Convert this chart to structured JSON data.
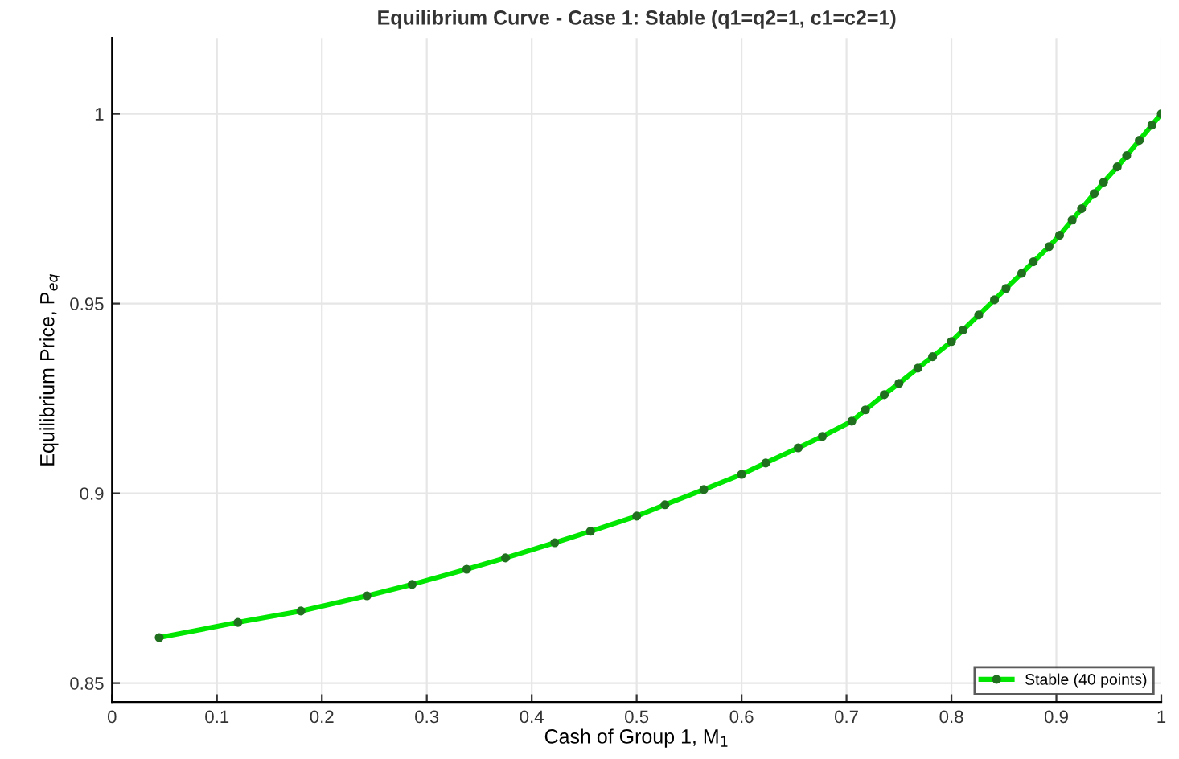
{
  "chart_data": {
    "type": "line",
    "title": "Equilibrium Curve - Case 1: Stable (q1=q2=1, c1=c2=1)",
    "xlabel": "Cash of Group 1, M$_{1}$",
    "ylabel": "Equilibrium Price, P$_{eq}$",
    "xlim": [
      0,
      1
    ],
    "ylim": [
      0.845,
      1.02
    ],
    "xticks": [
      0,
      0.1,
      0.2,
      0.3,
      0.4,
      0.5,
      0.6,
      0.7,
      0.8,
      0.9,
      1
    ],
    "yticks": [
      0.85,
      0.9,
      0.95,
      1
    ],
    "grid": true,
    "legend": "bottom right",
    "marker": "circle",
    "line_style": "solid",
    "series": [
      {
        "name": "Stable (40 points)",
        "color": "#00e600",
        "x": [
          0.045,
          0.12,
          0.18,
          0.243,
          0.286,
          0.338,
          0.375,
          0.422,
          0.456,
          0.5,
          0.527,
          0.564,
          0.6,
          0.623,
          0.654,
          0.677,
          0.705,
          0.718,
          0.736,
          0.75,
          0.768,
          0.782,
          0.8,
          0.811,
          0.826,
          0.841,
          0.852,
          0.867,
          0.878,
          0.893,
          0.903,
          0.915,
          0.924,
          0.936,
          0.945,
          0.958,
          0.967,
          0.979,
          0.991,
          1.0
        ],
        "values": [
          0.862,
          0.866,
          0.869,
          0.873,
          0.876,
          0.88,
          0.883,
          0.887,
          0.89,
          0.894,
          0.897,
          0.901,
          0.905,
          0.908,
          0.912,
          0.915,
          0.919,
          0.922,
          0.926,
          0.929,
          0.933,
          0.936,
          0.94,
          0.943,
          0.947,
          0.951,
          0.954,
          0.958,
          0.961,
          0.965,
          0.968,
          0.972,
          0.975,
          0.979,
          0.982,
          0.986,
          0.989,
          0.993,
          0.997,
          1.0
        ]
      }
    ]
  }
}
